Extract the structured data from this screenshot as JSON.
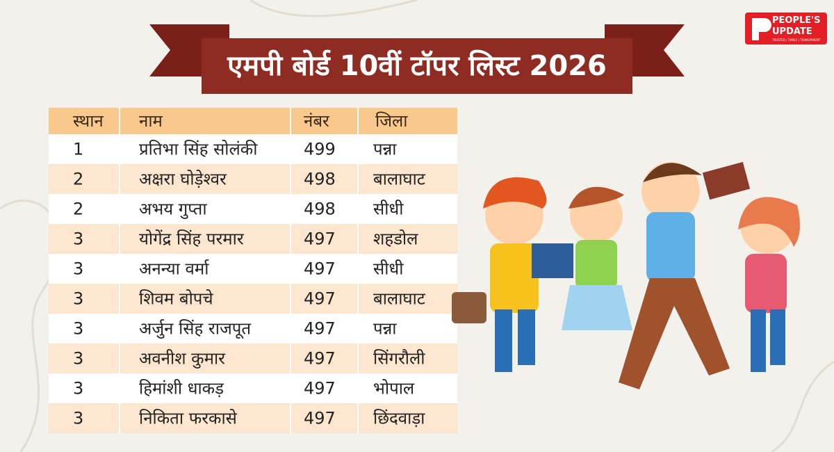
{
  "logo": {
    "line1": "PEOPLE'S",
    "line2": "UPDATE",
    "tagline": "TRUSTED | TIMELY | TRANSPARENT"
  },
  "title": "एमपी बोर्ड 10वीं टॉपर लिस्ट 2026",
  "table": {
    "header": [
      "स्थान",
      "नाम",
      "नंबर",
      "जिला"
    ],
    "rows": [
      [
        1,
        "प्रतिभा सिंह सोलंकी",
        499,
        "पन्ना"
      ],
      [
        2,
        "अक्षरा घोड़ेश्वर",
        498,
        "बालाघाट"
      ],
      [
        2,
        "अभय गुप्ता",
        498,
        "सीधी"
      ],
      [
        3,
        "योगेंद्र सिंह परमार",
        497,
        "शहडोल"
      ],
      [
        3,
        "अनन्या वर्मा",
        497,
        "सीधी"
      ],
      [
        3,
        "शिवम बोपचे",
        497,
        "बालाघाट"
      ],
      [
        3,
        "अर्जुन सिंह राजपूत",
        497,
        "पन्ना"
      ],
      [
        3,
        "अवनीश कुमार",
        497,
        "सिंगरौली"
      ],
      [
        3,
        "हिमांशी धाकड़",
        497,
        "भोपाल"
      ],
      [
        3,
        "निकिता फरकासे",
        497,
        "छिंदवाड़ा"
      ]
    ]
  }
}
